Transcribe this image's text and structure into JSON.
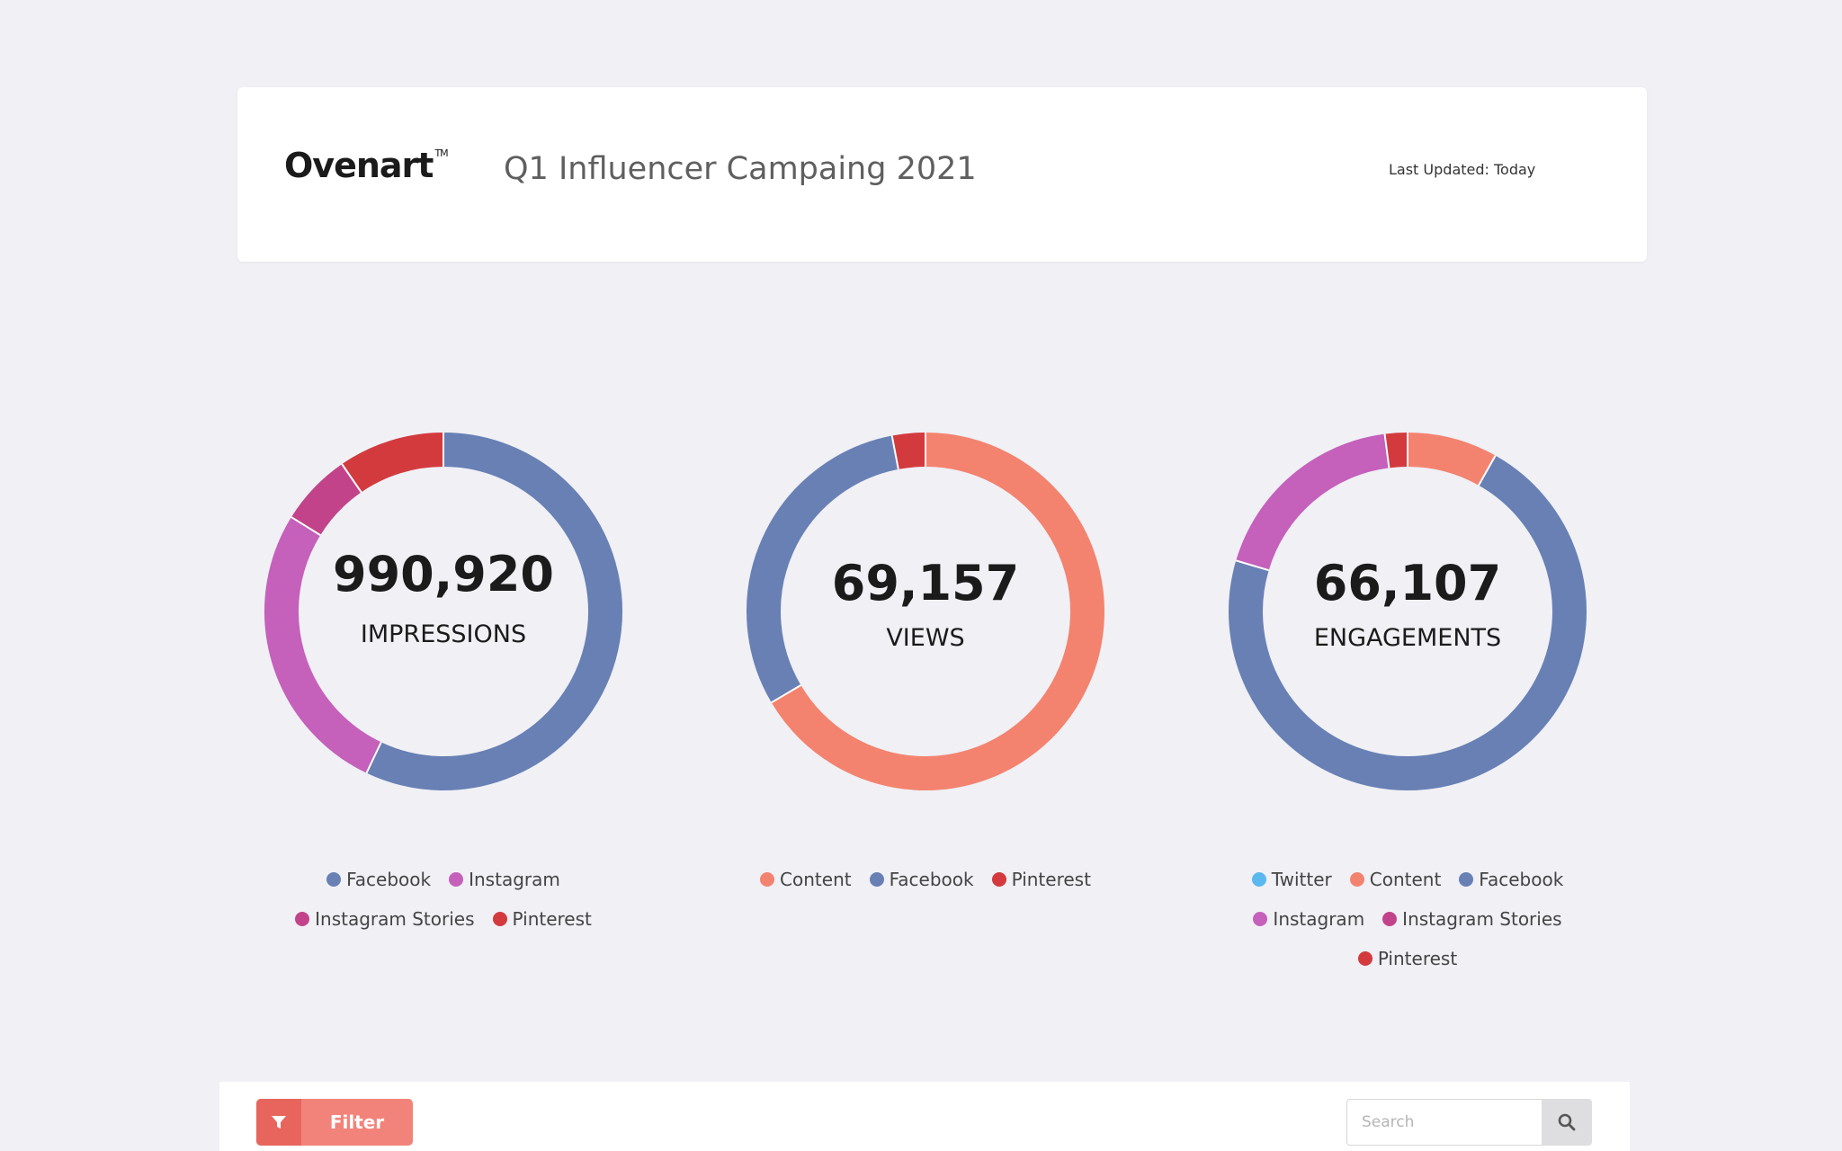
{
  "header": {
    "logo_text": "Ovenart",
    "logo_tm": "TM",
    "title": "Q1 Influencer Campaing 2021",
    "last_updated": "Last Updated: Today"
  },
  "colors": {
    "Facebook": "#6880b4",
    "Instagram": "#c560bb",
    "Instagram Stories": "#c2438a",
    "Pinterest": "#d33a3e",
    "Content": "#f3836f",
    "Twitter": "#5bb8ee"
  },
  "chart_data": [
    {
      "type": "pie",
      "donut": true,
      "center_value": "990,920",
      "center_label": "IMPRESSIONS",
      "categories": [
        "Facebook",
        "Instagram",
        "Instagram Stories",
        "Pinterest"
      ],
      "values": [
        56.5,
        26.5,
        6.5,
        9.5
      ],
      "unit": "percent (estimated)",
      "legend": [
        "Facebook",
        "Instagram",
        "Instagram Stories",
        "Pinterest"
      ],
      "legend_placement": "bottom"
    },
    {
      "type": "pie",
      "donut": true,
      "center_value": "69,157",
      "center_label": "VIEWS",
      "categories": [
        "Content",
        "Facebook",
        "Pinterest"
      ],
      "values": [
        66.5,
        30.5,
        3
      ],
      "unit": "percent (estimated)",
      "legend": [
        "Content",
        "Facebook",
        "Pinterest"
      ],
      "legend_placement": "bottom"
    },
    {
      "type": "pie",
      "donut": true,
      "center_value": "66,107",
      "center_label": "ENGAGEMENTS",
      "categories": [
        "Twitter",
        "Content",
        "Facebook",
        "Instagram",
        "Instagram Stories",
        "Pinterest"
      ],
      "values": [
        0,
        8,
        70,
        18,
        0,
        2
      ],
      "unit": "percent (estimated)",
      "legend": [
        "Twitter",
        "Content",
        "Facebook",
        "Instagram",
        "Instagram Stories",
        "Pinterest"
      ],
      "legend_placement": "bottom"
    }
  ],
  "toolbar": {
    "filter_label": "Filter",
    "search_placeholder": "Search"
  }
}
